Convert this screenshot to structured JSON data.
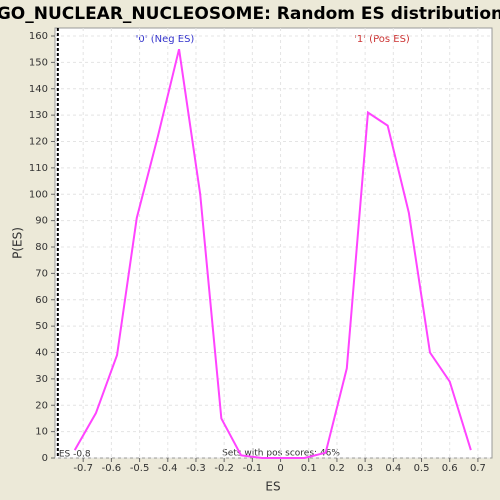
{
  "chart_data": {
    "type": "line",
    "title": "GO_NUCLEAR_NUCLEOSOME: Random ES distribution",
    "x_label": "ES",
    "y_label": "P(ES)",
    "x": [
      -0.73,
      -0.655,
      -0.58,
      -0.51,
      -0.435,
      -0.36,
      -0.285,
      -0.21,
      -0.14,
      -0.065,
      0.01,
      0.085,
      0.16,
      0.235,
      0.31,
      0.38,
      0.455,
      0.53,
      0.6,
      0.675
    ],
    "values": [
      3,
      17,
      39,
      91,
      122,
      155,
      100,
      15,
      1,
      0,
      0,
      0,
      2,
      34,
      131,
      126,
      93,
      40,
      29,
      3
    ],
    "color": "#ff44ff",
    "xlim": [
      -0.8,
      0.75
    ],
    "ylim": [
      0,
      160
    ],
    "xticks": [
      -0.7,
      -0.6,
      -0.5,
      -0.4,
      -0.3,
      -0.2,
      -0.1,
      0,
      0.1,
      0.2,
      0.3,
      0.4,
      0.5,
      0.6,
      0.7
    ],
    "yticks": [
      0,
      10,
      20,
      30,
      40,
      50,
      60,
      70,
      80,
      90,
      100,
      110,
      120,
      130,
      140,
      150,
      160
    ],
    "grid": true,
    "neg_label": "'0' (Neg ES)",
    "pos_label": "'1' (Pos ES)",
    "es_marker": {
      "value": -0.79,
      "label": "ES -0.8"
    },
    "footnote": "Sets with pos scores: 46%"
  }
}
